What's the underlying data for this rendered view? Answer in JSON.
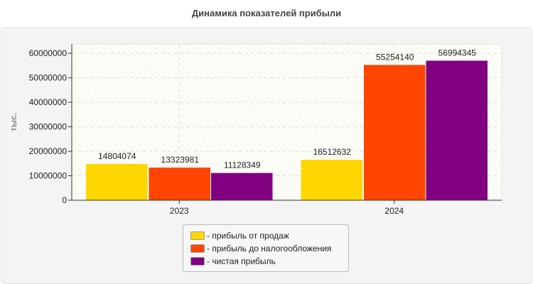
{
  "chart_data": {
    "type": "bar",
    "title": "Динамика показателей прибыли",
    "ylabel": "тыс.",
    "xlabel": "",
    "categories": [
      "2023",
      "2024"
    ],
    "series": [
      {
        "name": "- прибыль от продаж",
        "color": "#FFD700",
        "values": [
          14804074,
          16512632
        ]
      },
      {
        "name": "- прибыль до налогообложения",
        "color": "#FF4500",
        "values": [
          13323981,
          55254140
        ]
      },
      {
        "name": "- чистая прибыль",
        "color": "#800080",
        "values": [
          11128349,
          56994345
        ]
      }
    ],
    "ylim": [
      0,
      63800000
    ],
    "yticks": [
      0,
      10000000,
      20000000,
      30000000,
      40000000,
      50000000,
      60000000
    ],
    "grid": true,
    "legend": "bottom"
  }
}
